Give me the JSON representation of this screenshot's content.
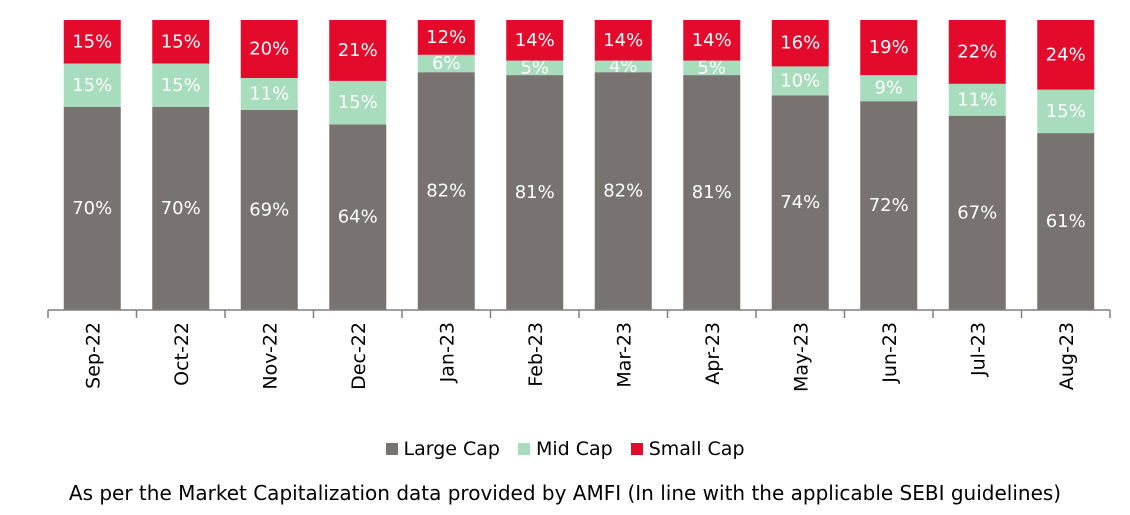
{
  "chart_data": {
    "type": "bar",
    "stacked": true,
    "categories": [
      "Sep-22",
      "Oct-22",
      "Nov-22",
      "Dec-22",
      "Jan-23",
      "Feb-23",
      "Mar-23",
      "Apr-23",
      "May-23",
      "Jun-23",
      "Jul-23",
      "Aug-23"
    ],
    "series": [
      {
        "name": "Large Cap",
        "color": "#787370",
        "values": [
          70,
          70,
          69,
          64,
          82,
          81,
          82,
          81,
          74,
          72,
          67,
          61
        ],
        "labels": [
          "70%",
          "70%",
          "69%",
          "64%",
          "82%",
          "81%",
          "82%",
          "81%",
          "74%",
          "72%",
          "67%",
          "61%"
        ]
      },
      {
        "name": "Mid Cap",
        "color": "#a7dcbc",
        "values": [
          15,
          15,
          11,
          15,
          6,
          5,
          4,
          5,
          10,
          9,
          11,
          15
        ],
        "labels": [
          "15%",
          "15%",
          "11%",
          "15%",
          "6%",
          "5%",
          "4%",
          "5%",
          "10%",
          "9%",
          "11%",
          "15%"
        ]
      },
      {
        "name": "Small Cap",
        "color": "#e30a2c",
        "values": [
          15,
          15,
          20,
          21,
          12,
          14,
          14,
          14,
          16,
          19,
          22,
          24
        ],
        "labels": [
          "15%",
          "15%",
          "20%",
          "21%",
          "12%",
          "14%",
          "14%",
          "14%",
          "16%",
          "19%",
          "22%",
          "24%"
        ]
      }
    ],
    "legend_position": "bottom",
    "grid": false
  },
  "footnote": "As per the Market Capitalization data provided by AMFI (In line with the applicable SEBI guidelines)"
}
